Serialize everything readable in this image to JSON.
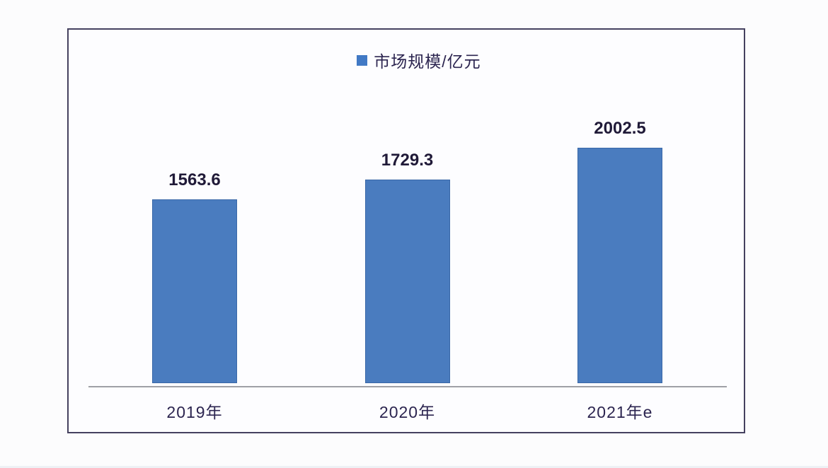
{
  "chart_data": {
    "type": "bar",
    "title": "",
    "legend": {
      "label": "市场规模/亿元",
      "position": "top",
      "marker_color": "#4179c5"
    },
    "categories": [
      "2019年",
      "2020年",
      "2021年e"
    ],
    "values": [
      1563.6,
      1729.3,
      2002.5
    ],
    "value_labels": [
      "1563.6",
      "1729.3",
      "2002.5"
    ],
    "series_name": "市场规模/亿元",
    "bar_color": "#4a7cbf",
    "axis_color": "#9fa0a6",
    "label_color": "#2c2550",
    "value_text_color": "#201a38",
    "panel_border_color": "#45415f",
    "grid": false,
    "ylim": [
      0,
      2100
    ],
    "y_axis_visible": false,
    "x_axis_visible": true
  }
}
